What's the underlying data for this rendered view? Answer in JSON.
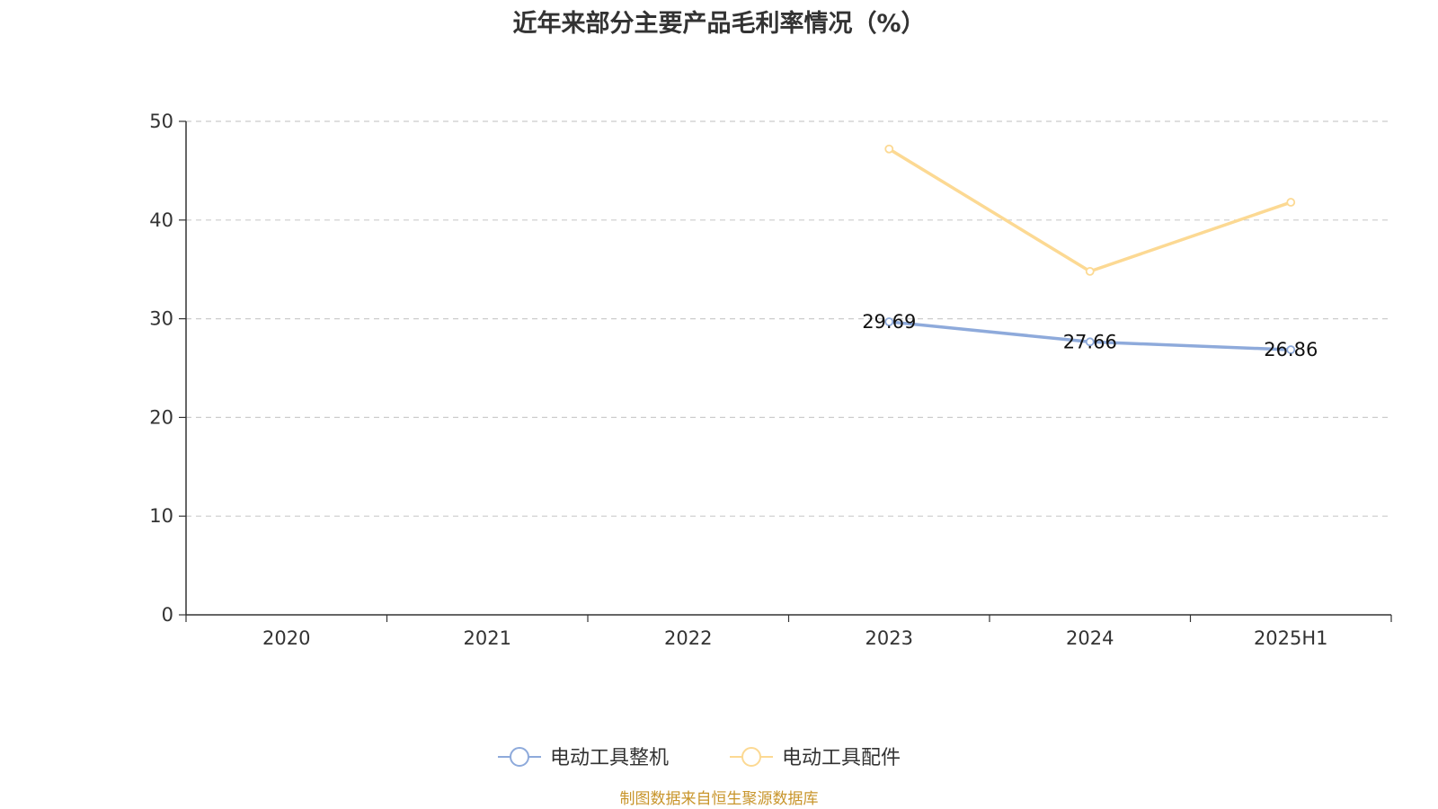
{
  "chart_data": {
    "type": "line",
    "title": "近年来部分主要产品毛利率情况（%）",
    "categories": [
      "2020",
      "2021",
      "2022",
      "2023",
      "2024",
      "2025H1"
    ],
    "ylim": [
      0,
      50
    ],
    "yticks": [
      0,
      10,
      20,
      30,
      40,
      50
    ],
    "grid": true,
    "legend_position": "bottom-center",
    "series": [
      {
        "name": "电动工具整机",
        "color": "#8eaadb",
        "values": [
          null,
          null,
          null,
          29.69,
          27.66,
          26.86
        ],
        "labels": [
          "",
          "",
          "",
          "29.69",
          "27.66",
          "26.86"
        ],
        "show_labels": true
      },
      {
        "name": "电动工具配件",
        "color": "#fcd993",
        "values": [
          null,
          null,
          null,
          47.2,
          34.8,
          41.8
        ],
        "labels": [
          "",
          "",
          "",
          "",
          "",
          ""
        ],
        "show_labels": false
      }
    ]
  },
  "source": "制图数据来自恒生聚源数据库"
}
